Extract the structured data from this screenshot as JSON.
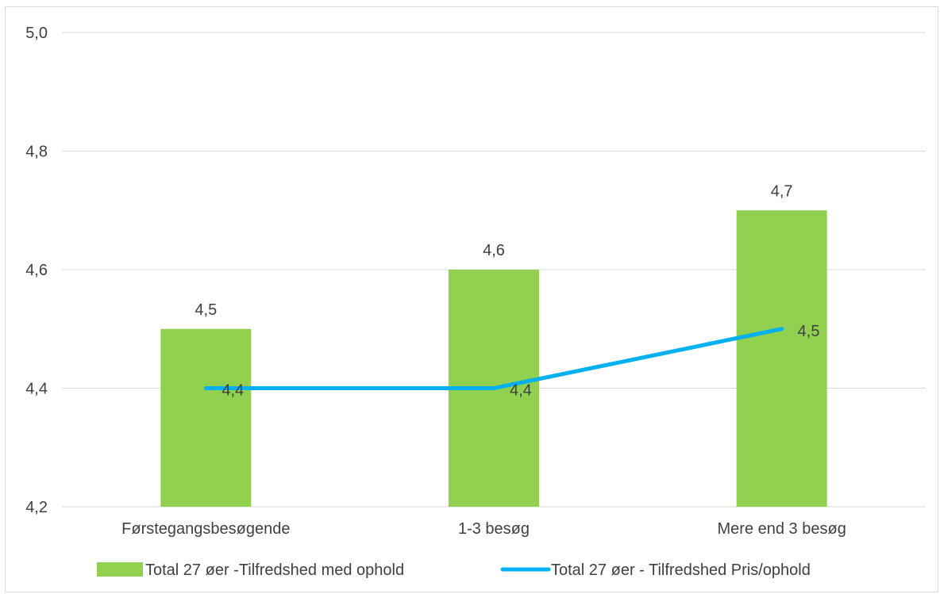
{
  "chart_data": {
    "type": "bar",
    "categories": [
      "Førstegangsbesøgende",
      "1-3 besøg",
      "Mere end 3 besøg"
    ],
    "ylim": [
      4.2,
      5.0
    ],
    "yticks": [
      4.2,
      4.4,
      4.6,
      4.8,
      5.0
    ],
    "ytick_labels": [
      "4,2",
      "4,4",
      "4,6",
      "4,8",
      "5,0"
    ],
    "grid": true,
    "legend_position": "bottom",
    "series": [
      {
        "name": "Total 27 øer -Tilfredshed med ophold",
        "type": "bar",
        "color": "#92d050",
        "values": [
          4.5,
          4.6,
          4.7
        ],
        "labels": [
          "4,5",
          "4,6",
          "4,7"
        ]
      },
      {
        "name": "Total 27 øer - Tilfredshed Pris/ophold",
        "type": "line",
        "color": "#00b0f0",
        "values": [
          4.4,
          4.4,
          4.5
        ],
        "labels": [
          "4,4",
          "4,4",
          "4,5"
        ]
      }
    ]
  }
}
